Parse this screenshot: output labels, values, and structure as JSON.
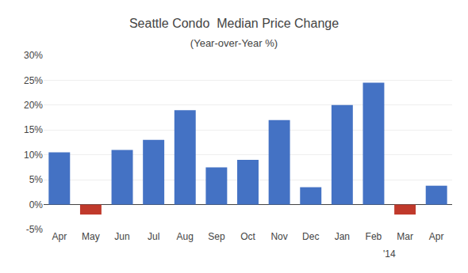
{
  "chart_data": {
    "type": "bar",
    "title": "Seattle Condo  Median Price Change",
    "subtitle": "(Year-over-Year %)",
    "categories": [
      "Apr",
      "May",
      "Jun",
      "Jul",
      "Aug",
      "Sep",
      "Oct",
      "Nov",
      "Dec",
      "Jan",
      "Feb",
      "Mar",
      "Apr"
    ],
    "values": [
      10.5,
      -2.0,
      11.0,
      13.0,
      19.0,
      7.5,
      9.0,
      17.0,
      3.5,
      20.0,
      24.5,
      -2.0,
      3.8
    ],
    "colors": [
      "#4472C4",
      "#C0392B",
      "#4472C4",
      "#4472C4",
      "#4472C4",
      "#4472C4",
      "#4472C4",
      "#4472C4",
      "#4472C4",
      "#4472C4",
      "#4472C4",
      "#C0392B",
      "#4472C4"
    ],
    "ylim": [
      -5,
      30
    ],
    "yticks": [
      {
        "value": -5,
        "label": "-5%"
      },
      {
        "value": 0,
        "label": "0%"
      },
      {
        "value": 5,
        "label": "5%"
      },
      {
        "value": 10,
        "label": "10%"
      },
      {
        "value": 15,
        "label": "15%"
      },
      {
        "value": 20,
        "label": "20%"
      },
      {
        "value": 25,
        "label": "25%"
      },
      {
        "value": 30,
        "label": "30%"
      }
    ],
    "annotations": [
      "'14"
    ],
    "grid": true
  }
}
